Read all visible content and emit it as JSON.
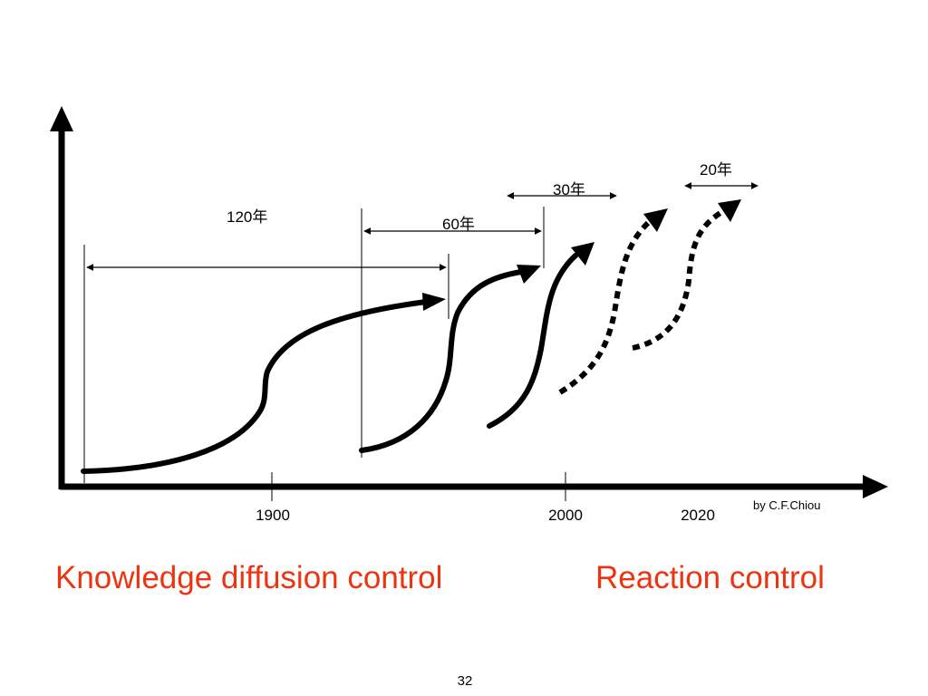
{
  "labels": {
    "span_120": "120年",
    "span_60": "60年",
    "span_30": "30年",
    "span_20": "20年"
  },
  "x_ticks": [
    "1900",
    "2000",
    "2020"
  ],
  "credit": "by C.F.Chiou",
  "captions": {
    "left": "Knowledge diffusion control",
    "right": "Reaction control"
  },
  "caption_color": "#ee3311",
  "page_number": "32"
}
